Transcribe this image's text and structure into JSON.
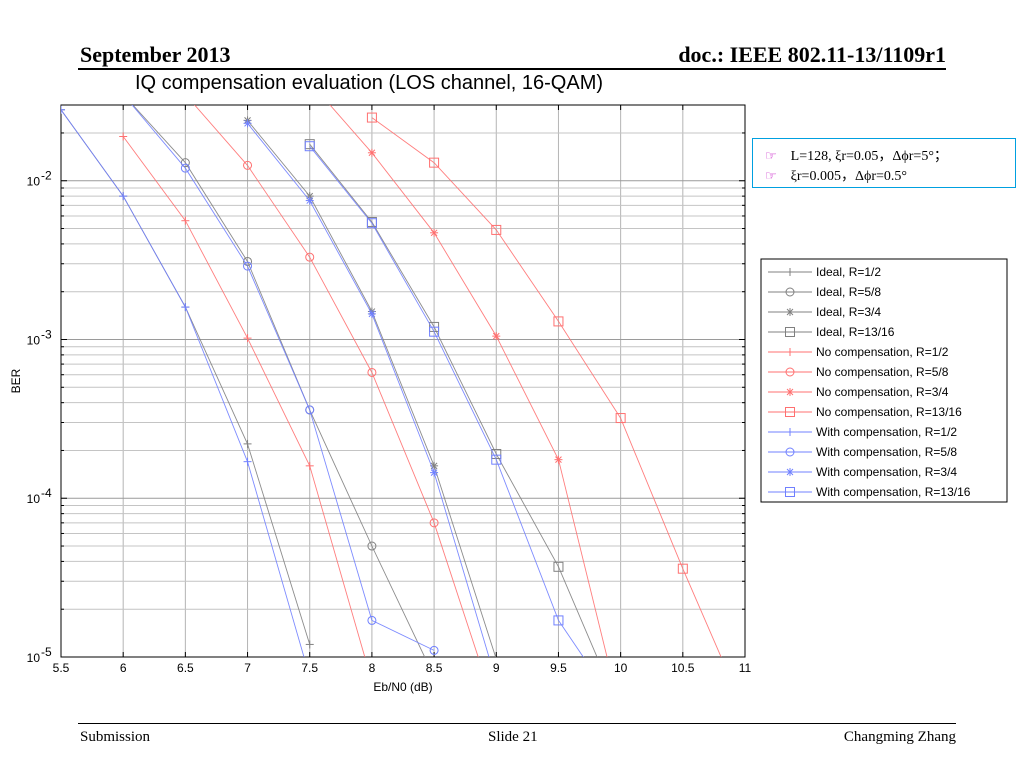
{
  "header": {
    "left": "September 2013",
    "right": "doc.: IEEE 802.11-13/1109r1"
  },
  "slide_title": "IQ compensation evaluation (LOS channel, 16-QAM)",
  "footer": {
    "left": "Submission",
    "center": "Slide 21",
    "right": "Changming Zhang"
  },
  "notes": [
    "L=128, ξr=0.05，Δϕr=5°；",
    "ξr=0.005，Δϕr=0.5°"
  ],
  "colors": {
    "ideal": "#808080",
    "no_comp": "#ff7070",
    "with_comp": "#7080ff",
    "note_border": "#00a0e0",
    "bullet": "#c000c0"
  },
  "chart_data": {
    "type": "line",
    "title": "",
    "xlabel": "Eb/N0 (dB)",
    "ylabel": "BER",
    "xlim": [
      5.5,
      11
    ],
    "ylim": [
      1e-05,
      0.03
    ],
    "yscale": "log",
    "grid": true,
    "legend_position": "right-outside",
    "xticks": [
      5.5,
      6,
      6.5,
      7,
      7.5,
      8,
      8.5,
      9,
      9.5,
      10,
      10.5,
      11
    ],
    "xtick_labels": [
      "5.5",
      "6",
      "6.5",
      "7",
      "7.5",
      "8",
      "8.5",
      "9",
      "9.5",
      "10",
      "10.5",
      "11"
    ],
    "yticks": [
      1e-05,
      0.0001,
      0.001,
      0.01
    ],
    "ytick_bases": [
      "10",
      "10",
      "10",
      "10"
    ],
    "ytick_exps": [
      "-5",
      "-4",
      "-3",
      "-2"
    ],
    "series": [
      {
        "name": "Ideal, R=1/2",
        "group": "ideal",
        "marker": "plus",
        "x": [
          5.5,
          6,
          6.5,
          7,
          7.5
        ],
        "y": [
          0.028,
          0.008,
          0.0016,
          0.00022,
          1.2e-05
        ]
      },
      {
        "name": "Ideal, R=5/8",
        "group": "ideal",
        "marker": "circle",
        "x": [
          6,
          6.5,
          7,
          7.5,
          8,
          8.5
        ],
        "y": [
          0.035,
          0.013,
          0.0031,
          0.00036,
          5e-05,
          7.5e-06
        ]
      },
      {
        "name": "Ideal, R=3/4",
        "group": "ideal",
        "marker": "star",
        "x": [
          7,
          7.5,
          8,
          8.5,
          9
        ],
        "y": [
          0.024,
          0.008,
          0.0015,
          0.00016,
          9.7e-06
        ]
      },
      {
        "name": "Ideal, R=13/16",
        "group": "ideal",
        "marker": "square",
        "x": [
          7.5,
          8,
          8.5,
          9,
          9.5,
          10
        ],
        "y": [
          0.017,
          0.0055,
          0.0012,
          0.00019,
          3.7e-05,
          4.5e-06
        ]
      },
      {
        "name": "No compensation, R=1/2",
        "group": "no_comp",
        "marker": "plus",
        "x": [
          6,
          6.5,
          7,
          7.5,
          8
        ],
        "y": [
          0.019,
          0.0056,
          0.00102,
          0.00016,
          7e-06
        ]
      },
      {
        "name": "No compensation, R=5/8",
        "group": "no_comp",
        "marker": "circle",
        "x": [
          6.5,
          7,
          7.5,
          8,
          8.5,
          9
        ],
        "y": [
          0.035,
          0.0125,
          0.0033,
          0.00062,
          7e-05,
          4.5e-06
        ]
      },
      {
        "name": "No compensation, R=3/4",
        "group": "no_comp",
        "marker": "star",
        "x": [
          7.5,
          8,
          8.5,
          9,
          9.5,
          10
        ],
        "y": [
          0.042,
          0.015,
          0.0047,
          0.00105,
          0.000175,
          4.5e-06
        ]
      },
      {
        "name": "No compensation, R=13/16",
        "group": "no_comp",
        "marker": "square",
        "x": [
          8,
          8.5,
          9,
          9.5,
          10,
          10.5,
          11
        ],
        "y": [
          0.025,
          0.013,
          0.0049,
          0.0013,
          0.00032,
          3.6e-05,
          4.5e-06
        ]
      },
      {
        "name": "With compensation, R=1/2",
        "group": "with_comp",
        "marker": "plus",
        "x": [
          5.5,
          6,
          6.5,
          7,
          7.5
        ],
        "y": [
          0.028,
          0.008,
          0.0016,
          0.00017,
          7.5e-06
        ]
      },
      {
        "name": "With compensation, R=5/8",
        "group": "with_comp",
        "marker": "circle",
        "x": [
          6,
          6.5,
          7,
          7.5,
          8,
          8.5
        ],
        "y": [
          0.035,
          0.012,
          0.0029,
          0.00036,
          1.7e-05,
          1.1e-05
        ]
      },
      {
        "name": "With compensation, R=3/4",
        "group": "with_comp",
        "marker": "star",
        "x": [
          7,
          7.5,
          8,
          8.5,
          9
        ],
        "y": [
          0.023,
          0.0075,
          0.00145,
          0.000145,
          7e-06
        ]
      },
      {
        "name": "With compensation, R=13/16",
        "group": "with_comp",
        "marker": "square",
        "x": [
          7.5,
          8,
          8.5,
          9,
          9.5,
          10
        ],
        "y": [
          0.0165,
          0.0054,
          0.00112,
          0.000175,
          1.7e-05,
          4.5e-06
        ]
      }
    ]
  }
}
